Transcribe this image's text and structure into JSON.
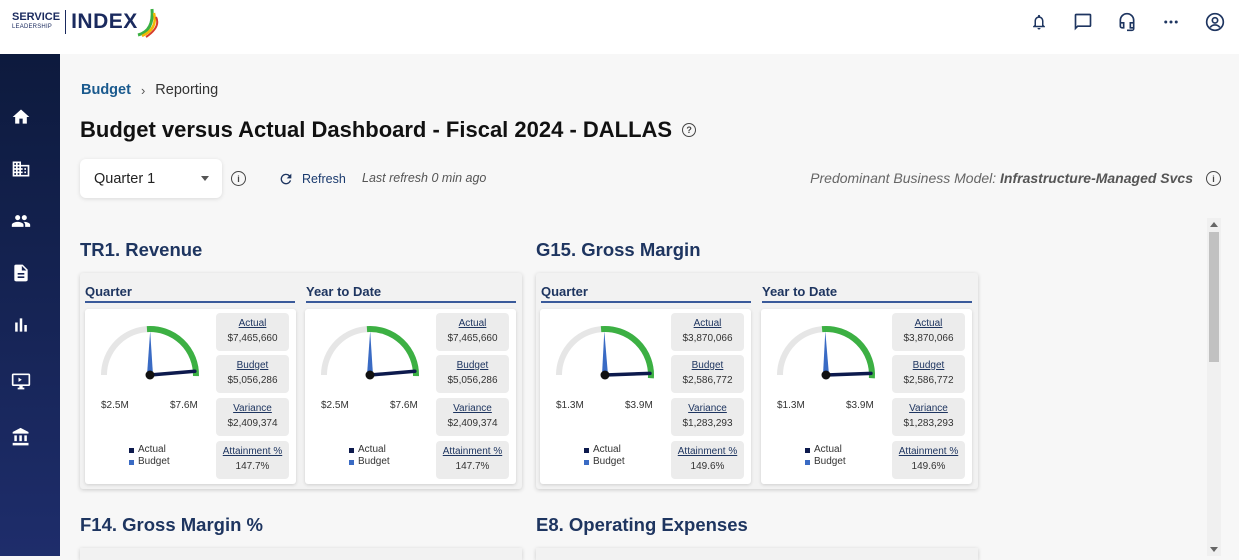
{
  "header": {
    "logo_service": "SERVICE",
    "logo_leadership": "LEADERSHIP",
    "logo_index": "INDEX",
    "icons": [
      "bell-icon",
      "chat-icon",
      "headset-icon",
      "more-icon",
      "account-icon"
    ]
  },
  "sidebar": {
    "icons": [
      "home-icon",
      "building-icon",
      "people-icon",
      "document-icon",
      "bar-chart-icon",
      "monitor-icon",
      "bank-icon"
    ]
  },
  "breadcrumb": {
    "link": "Budget",
    "separator": "›",
    "current": "Reporting"
  },
  "page": {
    "title": "Budget versus Actual Dashboard - Fiscal 2024 - DALLAS"
  },
  "controls": {
    "quarter_value": "Quarter 1",
    "refresh_label": "Refresh",
    "last_refresh": "Last refresh 0 min ago",
    "business_model_label": "Predominant Business Model:",
    "business_model_value": "Infrastructure-Managed Svcs"
  },
  "sections": [
    {
      "title": "TR1. Revenue",
      "panels": [
        {
          "label": "Quarter",
          "actual": "$7,465,660",
          "budget": "$5,056,286",
          "variance": "$2,409,374",
          "attainment": "147.7%",
          "min": "$2.5M",
          "max": "$7.6M",
          "actual_value": 7465660,
          "budget_value": 5056286,
          "gauge_min": 2500000,
          "gauge_max": 7600000
        },
        {
          "label": "Year to Date",
          "actual": "$7,465,660",
          "budget": "$5,056,286",
          "variance": "$2,409,374",
          "attainment": "147.7%",
          "min": "$2.5M",
          "max": "$7.6M",
          "actual_value": 7465660,
          "budget_value": 5056286,
          "gauge_min": 2500000,
          "gauge_max": 7600000
        }
      ]
    },
    {
      "title": "G15. Gross Margin",
      "panels": [
        {
          "label": "Quarter",
          "actual": "$3,870,066",
          "budget": "$2,586,772",
          "variance": "$1,283,293",
          "attainment": "149.6%",
          "min": "$1.3M",
          "max": "$3.9M",
          "actual_value": 3870066,
          "budget_value": 2586772,
          "gauge_min": 1300000,
          "gauge_max": 3900000
        },
        {
          "label": "Year to Date",
          "actual": "$3,870,066",
          "budget": "$2,586,772",
          "variance": "$1,283,293",
          "attainment": "149.6%",
          "min": "$1.3M",
          "max": "$3.9M",
          "actual_value": 3870066,
          "budget_value": 2586772,
          "gauge_min": 1300000,
          "gauge_max": 3900000
        }
      ]
    },
    {
      "title": "F14. Gross Margin %"
    },
    {
      "title": "E8. Operating Expenses"
    }
  ],
  "stat_labels": {
    "actual": "Actual",
    "budget": "Budget",
    "variance": "Variance",
    "attainment": "Attainment %"
  },
  "legend": {
    "actual": "Actual",
    "budget": "Budget"
  },
  "colors": {
    "actual_needle": "#0d1a4d",
    "budget_needle": "#3a6bc4",
    "gauge_fill": "#3cb043",
    "gauge_track": "#e6e6e6",
    "sidebar": "#14235a"
  }
}
